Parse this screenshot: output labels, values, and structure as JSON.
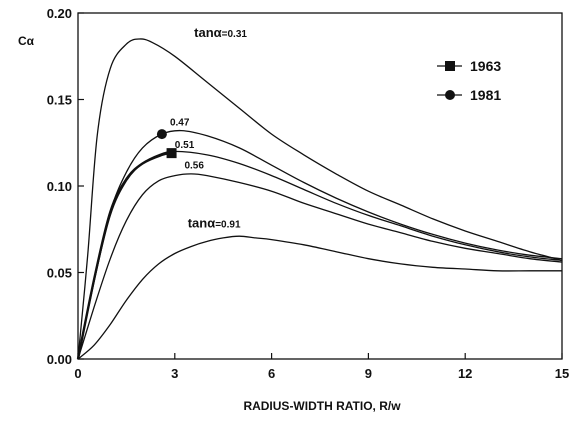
{
  "chart_data": {
    "type": "line",
    "title": "",
    "xlabel": "RADIUS-WIDTH RATIO, R/w",
    "ylabel": "Cα",
    "xlim": [
      0,
      15
    ],
    "ylim": [
      0,
      0.2
    ],
    "x_ticks": [
      "0",
      "3",
      "6",
      "9",
      "12",
      "15"
    ],
    "y_ticks": [
      "0.00",
      "0.05",
      "0.10",
      "0.15",
      "0.20"
    ],
    "grid": false,
    "legend_position": "top-right",
    "legend": [
      {
        "label": "1963",
        "marker": "square"
      },
      {
        "label": "1981",
        "marker": "circle"
      }
    ],
    "series": [
      {
        "label_main": "tanα",
        "label_value": "=0.31",
        "label_at": [
          3.6,
          0.186
        ],
        "points": [
          [
            0,
            0
          ],
          [
            0.3,
            0.06
          ],
          [
            0.6,
            0.13
          ],
          [
            1.0,
            0.168
          ],
          [
            1.5,
            0.182
          ],
          [
            1.9,
            0.185
          ],
          [
            2.3,
            0.183
          ],
          [
            3,
            0.175
          ],
          [
            4,
            0.16
          ],
          [
            5,
            0.145
          ],
          [
            6,
            0.13
          ],
          [
            7,
            0.118
          ],
          [
            8,
            0.107
          ],
          [
            9,
            0.097
          ],
          [
            10,
            0.089
          ],
          [
            11,
            0.081
          ],
          [
            12,
            0.074
          ],
          [
            13,
            0.068
          ],
          [
            14,
            0.062
          ],
          [
            15,
            0.057
          ]
        ]
      },
      {
        "label_value": "0.47",
        "label_at": [
          2.85,
          0.135
        ],
        "points": [
          [
            0,
            0
          ],
          [
            0.5,
            0.045
          ],
          [
            1,
            0.085
          ],
          [
            1.5,
            0.108
          ],
          [
            2,
            0.122
          ],
          [
            2.6,
            0.13
          ],
          [
            3.2,
            0.132
          ],
          [
            4,
            0.129
          ],
          [
            5,
            0.122
          ],
          [
            6,
            0.112
          ],
          [
            7,
            0.102
          ],
          [
            8,
            0.093
          ],
          [
            9,
            0.085
          ],
          [
            10,
            0.078
          ],
          [
            11,
            0.072
          ],
          [
            12,
            0.067
          ],
          [
            13,
            0.063
          ],
          [
            14,
            0.06
          ],
          [
            15,
            0.058
          ]
        ]
      },
      {
        "label_value": "0.51",
        "label_at": [
          3.0,
          0.122
        ],
        "points": [
          [
            0,
            0
          ],
          [
            0.5,
            0.045
          ],
          [
            1,
            0.083
          ],
          [
            1.5,
            0.103
          ],
          [
            2,
            0.113
          ],
          [
            2.5,
            0.118
          ],
          [
            3,
            0.12
          ],
          [
            4,
            0.118
          ],
          [
            5,
            0.113
          ],
          [
            6,
            0.106
          ],
          [
            7,
            0.098
          ],
          [
            8,
            0.09
          ],
          [
            9,
            0.083
          ],
          [
            10,
            0.077
          ],
          [
            11,
            0.071
          ],
          [
            12,
            0.066
          ],
          [
            13,
            0.062
          ],
          [
            14,
            0.059
          ],
          [
            15,
            0.057
          ]
        ]
      },
      {
        "label_value": "0.56",
        "label_at": [
          3.3,
          0.11
        ],
        "points": [
          [
            0,
            0
          ],
          [
            0.5,
            0.03
          ],
          [
            1,
            0.058
          ],
          [
            1.5,
            0.08
          ],
          [
            2,
            0.095
          ],
          [
            2.5,
            0.103
          ],
          [
            3,
            0.106
          ],
          [
            3.5,
            0.107
          ],
          [
            4,
            0.106
          ],
          [
            5,
            0.102
          ],
          [
            6,
            0.097
          ],
          [
            7,
            0.09
          ],
          [
            8,
            0.084
          ],
          [
            9,
            0.078
          ],
          [
            10,
            0.073
          ],
          [
            11,
            0.068
          ],
          [
            12,
            0.064
          ],
          [
            13,
            0.061
          ],
          [
            14,
            0.058
          ],
          [
            15,
            0.056
          ]
        ]
      },
      {
        "label_main": "tanα",
        "label_value": "=0.91",
        "label_at": [
          3.4,
          0.076
        ],
        "points": [
          [
            0,
            0
          ],
          [
            0.5,
            0.008
          ],
          [
            1,
            0.02
          ],
          [
            1.5,
            0.034
          ],
          [
            2,
            0.046
          ],
          [
            2.5,
            0.055
          ],
          [
            3,
            0.061
          ],
          [
            3.5,
            0.065
          ],
          [
            4,
            0.068
          ],
          [
            4.5,
            0.07
          ],
          [
            5,
            0.071
          ],
          [
            5.5,
            0.07
          ],
          [
            6,
            0.069
          ],
          [
            7,
            0.066
          ],
          [
            8,
            0.062
          ],
          [
            9,
            0.058
          ],
          [
            10,
            0.055
          ],
          [
            11,
            0.053
          ],
          [
            12,
            0.052
          ],
          [
            13,
            0.051
          ],
          [
            14,
            0.051
          ],
          [
            15,
            0.051
          ]
        ]
      }
    ],
    "markers": [
      {
        "legend": "1981",
        "shape": "circle",
        "x": 2.6,
        "y": 0.13
      },
      {
        "legend": "1963",
        "shape": "square",
        "x": 2.9,
        "y": 0.119
      }
    ],
    "emphasis_segment": {
      "x": [
        0,
        2.9
      ],
      "y_curve": [
        [
          0,
          0
        ],
        [
          0.5,
          0.046
        ],
        [
          1,
          0.085
        ],
        [
          1.5,
          0.104
        ],
        [
          2,
          0.113
        ],
        [
          2.6,
          0.118
        ],
        [
          2.9,
          0.119
        ]
      ]
    }
  }
}
